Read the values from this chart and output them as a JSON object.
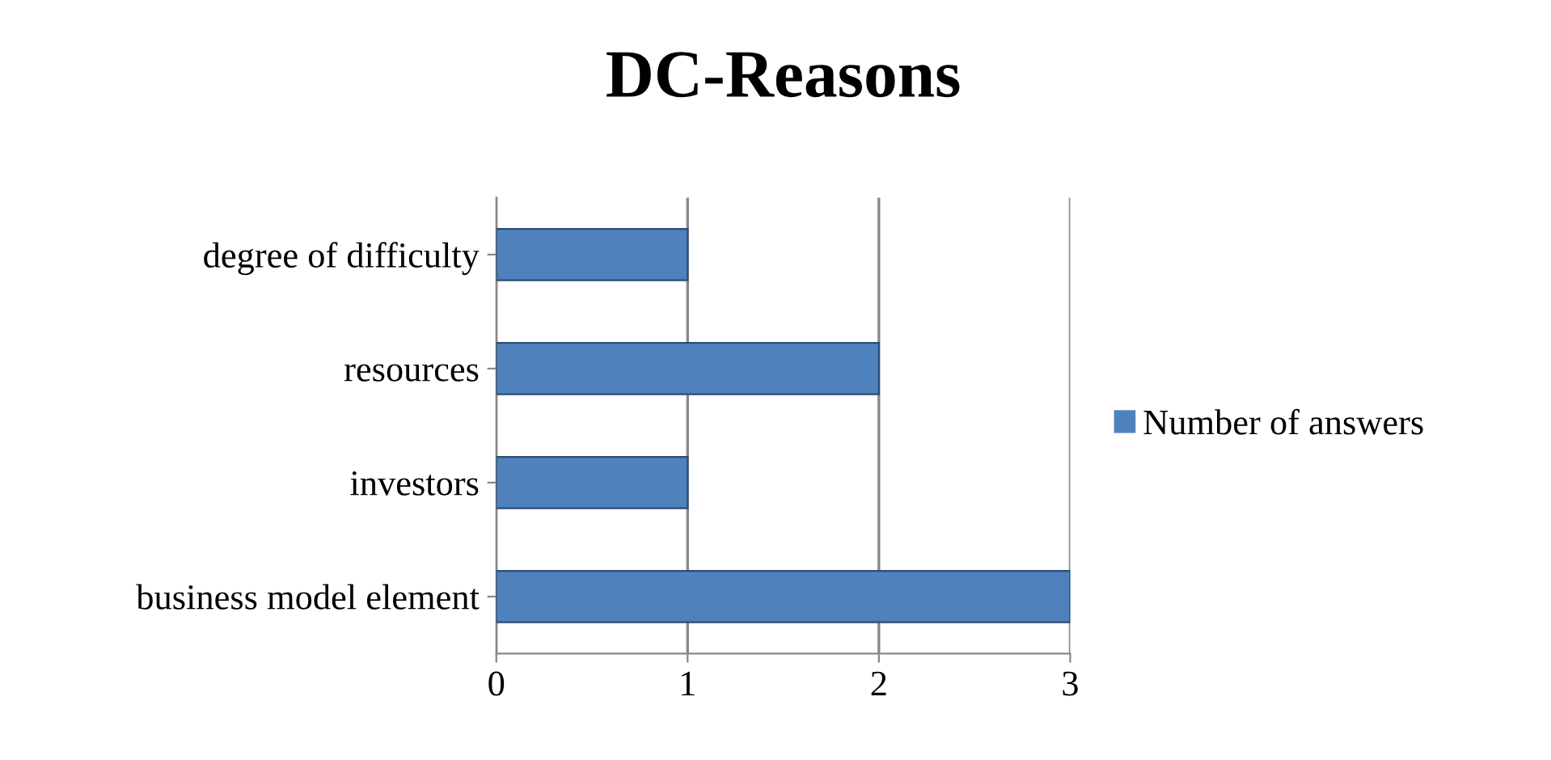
{
  "chart_data": {
    "type": "bar",
    "orientation": "horizontal",
    "title": "DC-Reasons",
    "categories": [
      "degree of difficulty",
      "resources",
      "investors",
      "business model element"
    ],
    "series": [
      {
        "name": "Number of answers",
        "color": "#4f81bd",
        "values": [
          1,
          2,
          1,
          3
        ]
      }
    ],
    "xlim": [
      0,
      3
    ],
    "xticks": [
      0,
      1,
      2,
      3
    ],
    "grid": "x",
    "legend": "right"
  }
}
